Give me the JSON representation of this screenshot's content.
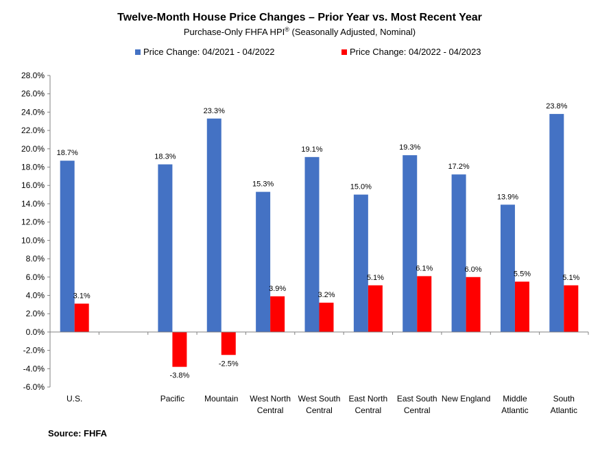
{
  "chart_data": {
    "type": "bar",
    "title": "Twelve-Month House Price Changes – Prior Year vs. Most Recent Year",
    "subtitle": "Purchase-Only FHFA HPI",
    "subtitle_sup": "®",
    "subtitle_rest": " (Seasonally Adjusted, Nominal)",
    "categories": [
      [
        "U.S."
      ],
      [
        ""
      ],
      [
        "Pacific"
      ],
      [
        "Mountain"
      ],
      [
        "West North",
        "Central"
      ],
      [
        "West South",
        "Central"
      ],
      [
        "East North",
        "Central"
      ],
      [
        "East South",
        "Central"
      ],
      [
        "New England"
      ],
      [
        "Middle",
        "Atlantic"
      ],
      [
        "South",
        "Atlantic"
      ]
    ],
    "series": [
      {
        "name": "Price Change:  04/2021 - 04/2022",
        "color": "#4472C4",
        "values": [
          18.7,
          null,
          18.3,
          23.3,
          15.3,
          19.1,
          15.0,
          19.3,
          17.2,
          13.9,
          23.8
        ]
      },
      {
        "name": "Price Change:  04/2022 - 04/2023",
        "color": "#FF0000",
        "values": [
          3.1,
          null,
          -3.8,
          -2.5,
          3.9,
          3.2,
          5.1,
          6.1,
          6.0,
          5.5,
          5.1
        ]
      }
    ],
    "ylim": [
      -6.0,
      28.0
    ],
    "ytick_step": 2.0,
    "ytick_format": "0.0%",
    "legend_position": "top-center",
    "grid": false,
    "source": "Source: FHFA"
  }
}
